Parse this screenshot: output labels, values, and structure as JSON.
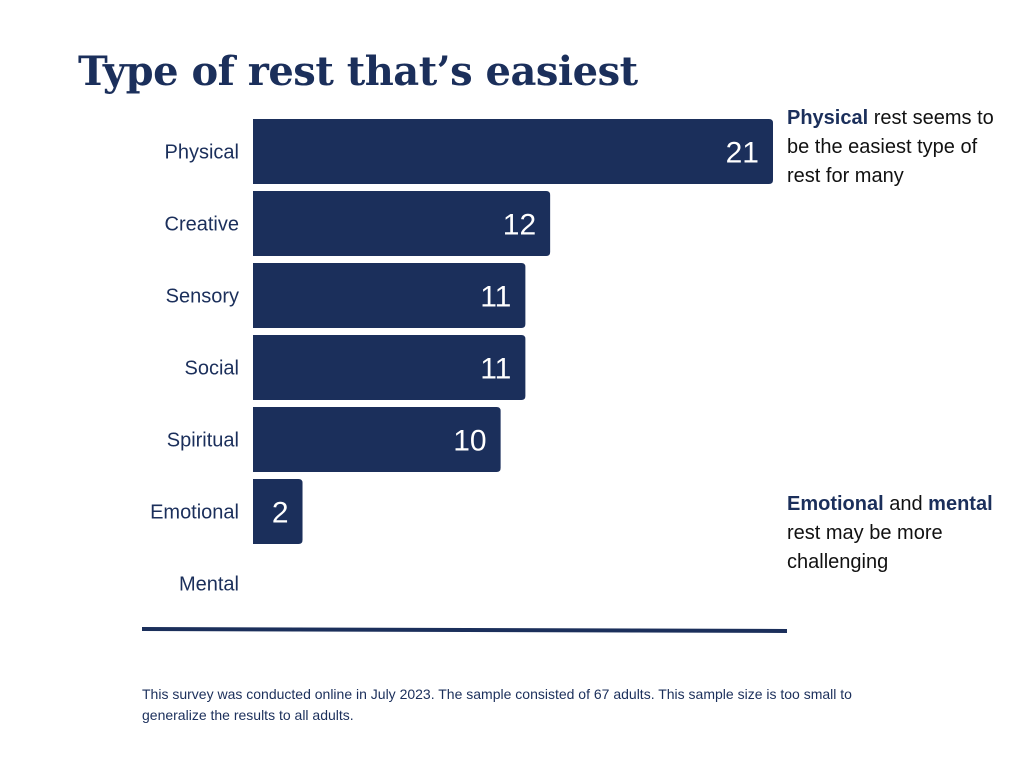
{
  "title": "Type of rest that’s easiest",
  "chart_data": {
    "type": "bar",
    "orientation": "horizontal",
    "categories": [
      "Physical",
      "Creative",
      "Sensory",
      "Social",
      "Spiritual",
      "Emotional",
      "Mental"
    ],
    "values": [
      21,
      12,
      11,
      11,
      10,
      2,
      0
    ],
    "data_labels": [
      "21",
      "12",
      "11",
      "11",
      "10",
      "2",
      ""
    ],
    "xlim": [
      0,
      21
    ],
    "grid": false,
    "legend": "none",
    "bar_color": "#1b2f5b"
  },
  "annotations": {
    "physical": {
      "highlight": "Physical",
      "text": " rest seems to be the easiest type of rest for many"
    },
    "emotional": {
      "highlight_1": "Emotional",
      "text_1": " and ",
      "highlight_2": "mental",
      "text_2": " rest may be more challenging"
    }
  },
  "footnote": "This survey was conducted online in July 2023. The sample consisted of 67 adults. This sample size is too small to generalize the results to all adults.",
  "colors": {
    "primary": "#1b2f5b",
    "text": "#111111",
    "background": "#ffffff"
  }
}
